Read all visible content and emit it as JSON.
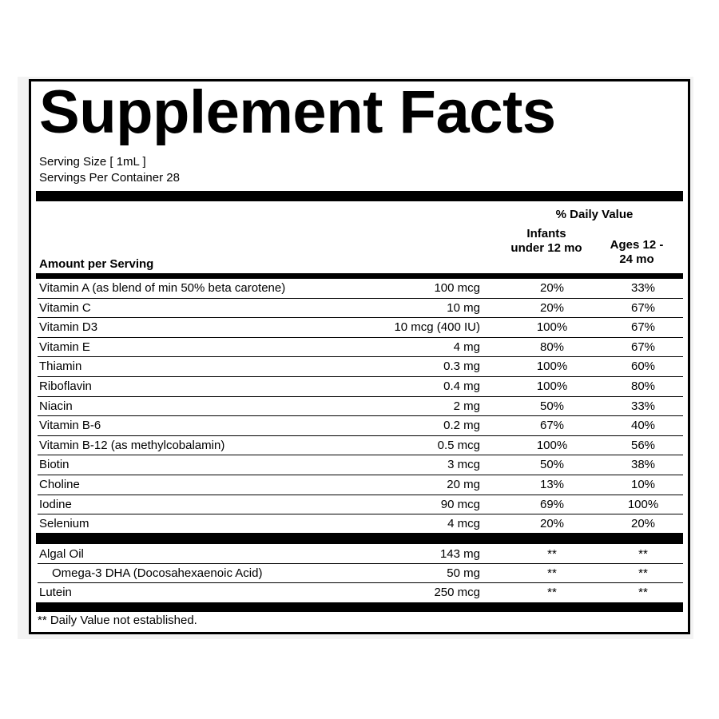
{
  "title": "Supplement Facts",
  "serving_size": "Serving Size [ 1mL ]",
  "servings_per_container": "Servings Per Container 28",
  "header": {
    "daily_value": "% Daily Value",
    "col_infants": "Infants under 12 mo",
    "col_ages": "Ages 12 - 24 mo",
    "amount_per_serving": "Amount per Serving"
  },
  "vitamins": [
    {
      "name": "Vitamin A (as blend of min 50% beta carotene)",
      "amount": "100 mcg",
      "infants": "20%",
      "ages": "33%"
    },
    {
      "name": "Vitamin C",
      "amount": "10 mg",
      "infants": "20%",
      "ages": "67%"
    },
    {
      "name": "Vitamin D3",
      "amount": "10 mcg (400 IU)",
      "infants": "100%",
      "ages": "67%"
    },
    {
      "name": "Vitamin E",
      "amount": "4 mg",
      "infants": "80%",
      "ages": "67%"
    },
    {
      "name": "Thiamin",
      "amount": "0.3 mg",
      "infants": "100%",
      "ages": "60%"
    },
    {
      "name": "Riboflavin",
      "amount": "0.4 mg",
      "infants": "100%",
      "ages": "80%"
    },
    {
      "name": "Niacin",
      "amount": "2 mg",
      "infants": "50%",
      "ages": "33%"
    },
    {
      "name": "Vitamin B-6",
      "amount": "0.2 mg",
      "infants": "67%",
      "ages": "40%"
    },
    {
      "name": "Vitamin B-12 (as methylcobalamin)",
      "amount": "0.5 mcg",
      "infants": "100%",
      "ages": "56%"
    },
    {
      "name": "Biotin",
      "amount": "3 mcg",
      "infants": "50%",
      "ages": "38%"
    },
    {
      "name": "Choline",
      "amount": "20 mg",
      "infants": "13%",
      "ages": "10%"
    },
    {
      "name": "Iodine",
      "amount": "90 mcg",
      "infants": "69%",
      "ages": "100%"
    },
    {
      "name": "Selenium",
      "amount": "4 mcg",
      "infants": "20%",
      "ages": "20%"
    }
  ],
  "others": [
    {
      "name": "Algal Oil",
      "amount": "143 mg",
      "infants": "**",
      "ages": "**"
    },
    {
      "name": "Omega-3 DHA (Docosahexaenoic Acid)",
      "amount": "50 mg",
      "infants": "**",
      "ages": "**"
    },
    {
      "name": "Lutein",
      "amount": "250 mcg",
      "infants": "**",
      "ages": "**"
    }
  ],
  "footnote": "** Daily Value not established."
}
